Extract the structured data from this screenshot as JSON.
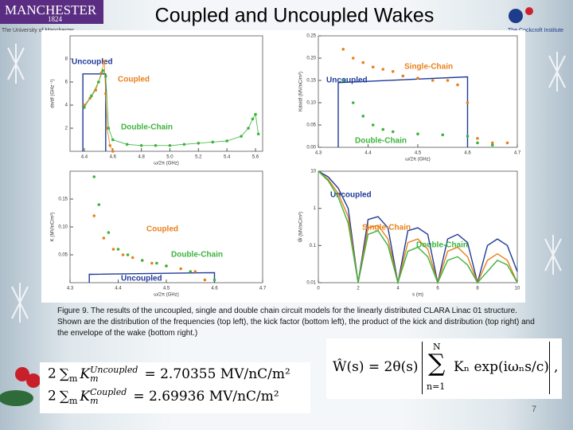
{
  "title": "Coupled and Uncoupled Wakes",
  "logos": {
    "left_name": "MANCHESTER",
    "left_year": "1824",
    "left_sub": "The University of Manchester",
    "right_name": "The Cockcroft Institute"
  },
  "chart_data": [
    {
      "type": "line",
      "xlabel": "ω/2π (GHz)",
      "ylabel": "dn/df (GHz⁻¹)",
      "xlim": [
        4.3,
        5.65
      ],
      "xticks": [
        4.4,
        4.6,
        4.8,
        {
          "value": 5,
          "label": "5.0"
        },
        5.2,
        5.4,
        5.6
      ],
      "ylim": [
        0,
        10
      ],
      "yticks": [
        2,
        4,
        6,
        8
      ],
      "series": [
        {
          "name": "Uncoupled",
          "color": "#1f3a9a",
          "mode": "line",
          "x": [
            4.39,
            4.39,
            4.55,
            4.55
          ],
          "values": [
            0,
            6.7,
            6.7,
            0
          ]
        },
        {
          "name": "Coupled",
          "color": "#e8801a",
          "mode": "lines+markers",
          "x": [
            4.4,
            4.44,
            4.48,
            4.5,
            4.52,
            4.54,
            4.55,
            4.56,
            4.58,
            4.6
          ],
          "values": [
            4,
            4.6,
            5.3,
            6,
            6.8,
            7.8,
            5,
            2,
            0.5,
            0
          ]
        },
        {
          "name": "Double-Chain",
          "color": "#3cb33c",
          "mode": "lines+markers",
          "x": [
            4.4,
            4.45,
            4.5,
            4.53,
            4.55,
            4.57,
            4.6,
            4.7,
            4.8,
            4.9,
            5.0,
            5.1,
            5.2,
            5.3,
            5.4,
            5.5,
            5.55,
            5.58,
            5.6,
            5.62
          ],
          "values": [
            3.8,
            4.8,
            6,
            7,
            6.5,
            2,
            1,
            0.6,
            0.5,
            0.5,
            0.5,
            0.6,
            0.7,
            0.8,
            0.9,
            1.3,
            2,
            2.8,
            3.2,
            1.5
          ]
        }
      ]
    },
    {
      "type": "line",
      "xlabel": "ω/2π (GHz)",
      "ylabel": "Kdn/df (MV/nC/m²)",
      "xlim": [
        4.3,
        4.7
      ],
      "xticks": [
        4.3,
        4.4,
        4.5,
        4.6,
        4.7
      ],
      "ylim": [
        0,
        0.25
      ],
      "yticks": [
        {
          "value": 0,
          "label": "0.00"
        },
        0.05,
        {
          "value": 0.1,
          "label": "0.10"
        },
        0.15,
        {
          "value": 0.2,
          "label": "0.20"
        },
        0.25
      ],
      "series": [
        {
          "name": "Uncoupled",
          "color": "#1f3a9a",
          "mode": "line",
          "x": [
            4.34,
            4.34,
            4.6,
            4.6
          ],
          "values": [
            0,
            0.145,
            0.158,
            0
          ]
        },
        {
          "name": "Single-Chain",
          "color": "#e8801a",
          "mode": "markers",
          "x": [
            4.35,
            4.37,
            4.39,
            4.41,
            4.43,
            4.45,
            4.47,
            4.5,
            4.53,
            4.56,
            4.58,
            4.6,
            4.62,
            4.65,
            4.68
          ],
          "values": [
            0.22,
            0.2,
            0.19,
            0.18,
            0.175,
            0.17,
            0.16,
            0.155,
            0.15,
            0.15,
            0.14,
            0.1,
            0.02,
            0.01,
            0.01
          ]
        },
        {
          "name": "Double-Chain",
          "color": "#3cb33c",
          "mode": "markers",
          "x": [
            4.35,
            4.37,
            4.39,
            4.41,
            4.43,
            4.45,
            4.5,
            4.55,
            4.6,
            4.62,
            4.65
          ],
          "values": [
            0.15,
            0.1,
            0.07,
            0.05,
            0.04,
            0.035,
            0.03,
            0.028,
            0.025,
            0.01,
            0.005
          ]
        }
      ]
    },
    {
      "type": "line",
      "xlabel": "ω/2π (GHz)",
      "ylabel": "K (MV/nC/m²)",
      "xlim": [
        4.3,
        4.7
      ],
      "xticks": [
        4.3,
        4.4,
        4.5,
        4.6,
        4.7
      ],
      "ylim": [
        0,
        0.2
      ],
      "yticks": [
        0.05,
        {
          "value": 0.1,
          "label": "0.10"
        },
        0.15
      ],
      "series": [
        {
          "name": "Uncoupled",
          "color": "#1f3a9a",
          "mode": "line",
          "x": [
            4.34,
            4.34,
            4.6,
            4.6
          ],
          "values": [
            0,
            0.015,
            0.018,
            0
          ]
        },
        {
          "name": "Coupled",
          "color": "#e8801a",
          "mode": "markers",
          "x": [
            4.35,
            4.37,
            4.39,
            4.41,
            4.43,
            4.45,
            4.47,
            4.5,
            4.53,
            4.56,
            4.58
          ],
          "values": [
            0.12,
            0.08,
            0.06,
            0.05,
            0.045,
            0.04,
            0.035,
            0.03,
            0.025,
            0.02,
            0.005
          ]
        },
        {
          "name": "Double-Chain",
          "color": "#3cb33c",
          "mode": "markers",
          "x": [
            4.35,
            4.36,
            4.38,
            4.4,
            4.42,
            4.45,
            4.48,
            4.5,
            4.55,
            4.6
          ],
          "values": [
            0.19,
            0.14,
            0.09,
            0.06,
            0.05,
            0.04,
            0.035,
            0.03,
            0.02,
            0.005
          ]
        }
      ]
    },
    {
      "type": "line",
      "xlabel": "s (m)",
      "ylabel": "Ŵ (MV/nC/m²)",
      "log_y": true,
      "xlim": [
        0,
        10
      ],
      "xticks": [
        0,
        2,
        4,
        6,
        8,
        10
      ],
      "ylim": [
        0.01,
        10
      ],
      "yticks": [
        0.01,
        0.1,
        1,
        10
      ],
      "series": [
        {
          "name": "Uncoupled",
          "color": "#1f3a9a",
          "mode": "line",
          "x": [
            0,
            0.5,
            1,
            1.5,
            2,
            2.5,
            3,
            3.5,
            4,
            4.5,
            5,
            5.5,
            6,
            6.5,
            7,
            7.5,
            8,
            8.5,
            9,
            9.5,
            10
          ],
          "values": [
            10,
            7,
            3.5,
            1,
            0.01,
            0.5,
            0.6,
            0.3,
            0.01,
            0.25,
            0.3,
            0.2,
            0.01,
            0.15,
            0.2,
            0.12,
            0.01,
            0.1,
            0.15,
            0.1,
            0.02
          ]
        },
        {
          "name": "Single-Chain",
          "color": "#e8801a",
          "mode": "line",
          "x": [
            0,
            0.5,
            1,
            1.5,
            2,
            2.5,
            3,
            3.5,
            4,
            4.5,
            5,
            5.5,
            6,
            6.5,
            7,
            7.5,
            8,
            8.5,
            9,
            9.5,
            10
          ],
          "values": [
            10,
            6,
            2.5,
            0.6,
            0.01,
            0.3,
            0.35,
            0.15,
            0.01,
            0.12,
            0.15,
            0.08,
            0.01,
            0.07,
            0.09,
            0.05,
            0.01,
            0.04,
            0.06,
            0.04,
            0.01
          ]
        },
        {
          "name": "Double-Chain",
          "color": "#3cb33c",
          "mode": "line",
          "x": [
            0,
            0.5,
            1,
            1.5,
            2,
            2.5,
            3,
            3.5,
            4,
            4.5,
            5,
            5.5,
            6,
            6.5,
            7,
            7.5,
            8,
            8.5,
            9,
            9.5,
            10
          ],
          "values": [
            10,
            5.5,
            2,
            0.4,
            0.01,
            0.2,
            0.25,
            0.1,
            0.01,
            0.07,
            0.09,
            0.05,
            0.01,
            0.04,
            0.05,
            0.03,
            0.01,
            0.02,
            0.04,
            0.03,
            0.01
          ]
        }
      ]
    }
  ],
  "caption": "Figure 9. The results of the uncoupled, single and double chain circuit models for the linearly distributed CLARA Linac 01 structure. Shown are the distribution of the frequencies (top left), the kick factor (bottom left), the product of the kick and distribution (top right) and the envelope of the wake (bottom right.)",
  "formulas": [
    {
      "coef": "2",
      "sum": "∑",
      "index": "m",
      "symbol": "K",
      "sub": "m",
      "sup": "Uncoupled",
      "rhs": "= 2.70355 MV/nC/m²"
    },
    {
      "coef": "2",
      "sum": "∑",
      "index": "m",
      "symbol": "K",
      "sub": "m",
      "sup": "Coupled",
      "rhs": "= 2.69936 MV/nC/m²"
    }
  ],
  "wake_formula": {
    "lhs": "Ŵ(s) = 2θ(s)",
    "sum": "∑",
    "upper": "N",
    "lower": "n=1",
    "body": "Kₙ exp(iωₙs/c)",
    "end": ","
  },
  "page_number": "7"
}
